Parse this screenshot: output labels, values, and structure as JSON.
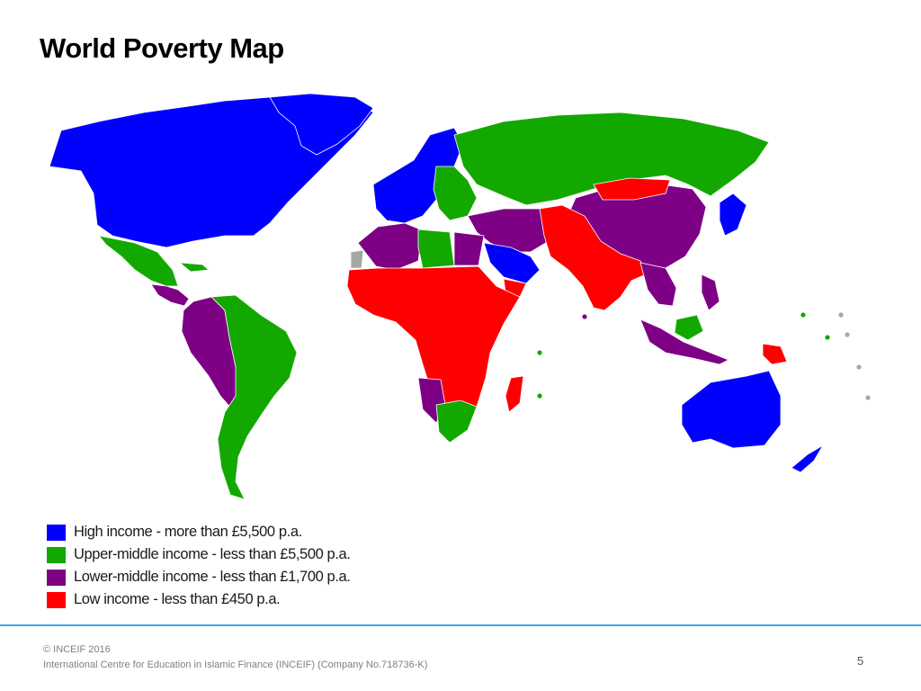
{
  "slide": {
    "title": "World Poverty Map",
    "page_number": "5"
  },
  "colors": {
    "high": "#0000ff",
    "upper_middle": "#13a800",
    "lower_middle": "#7d0085",
    "low": "#ff0000",
    "no_data": "#a6a6a6",
    "accent_rule": "#3fa9e0"
  },
  "legend": [
    {
      "key": "high",
      "label": "High income - more than £5,500 p.a."
    },
    {
      "key": "upper_middle",
      "label": "Upper-middle income - less than £5,500 p.a."
    },
    {
      "key": "lower_middle",
      "label": "Lower-middle income - less than £1,700 p.a."
    },
    {
      "key": "low",
      "label": "Low income - less than £450 p.a."
    }
  ],
  "footer": {
    "copyright": "© INCEIF 2016",
    "company": "International Centre for Education in Islamic Finance (INCEIF) (Company No.718736-K)"
  }
}
